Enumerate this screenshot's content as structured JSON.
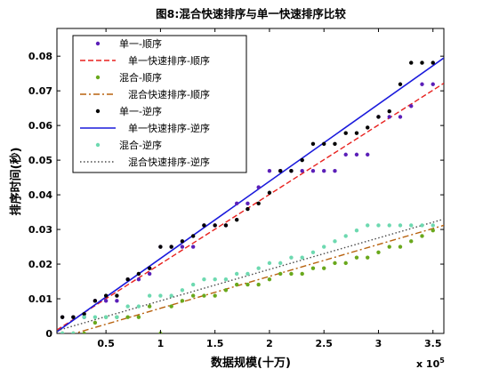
{
  "chart_data": {
    "type": "scatter",
    "title": "图8:混合快速排序与单一快速排序比较",
    "xlabel": "数据规模(十万)",
    "ylabel": "排序时间(秒)",
    "x_multiplier": "x 10",
    "x_exponent": "5",
    "xlim": [
      5000,
      360000
    ],
    "ylim": [
      0,
      0.088
    ],
    "x_ticks": [
      50000,
      100000,
      150000,
      200000,
      250000,
      300000,
      350000
    ],
    "x_tick_labels": [
      "0.5",
      "1",
      "1.5",
      "2",
      "2.5",
      "3",
      "3.5"
    ],
    "y_ticks": [
      0,
      0.01,
      0.02,
      0.03,
      0.04,
      0.05,
      0.06,
      0.07,
      0.08
    ],
    "y_tick_labels": [
      "0",
      "0.01",
      "0.02",
      "0.03",
      "0.04",
      "0.05",
      "0.06",
      "0.07",
      "0.08"
    ],
    "grid": false,
    "legend_position": "top-left",
    "series": [
      {
        "name": "单一-顺序",
        "kind": "points",
        "color": "#5b1fb8",
        "x": [
          10000,
          20000,
          30000,
          40000,
          50000,
          60000,
          70000,
          80000,
          90000,
          100000,
          110000,
          120000,
          130000,
          140000,
          150000,
          160000,
          170000,
          180000,
          190000,
          200000,
          210000,
          220000,
          230000,
          240000,
          250000,
          260000,
          270000,
          280000,
          290000,
          300000,
          310000,
          320000,
          330000,
          340000,
          350000
        ],
        "y": [
          0.0047,
          0.0047,
          0.0047,
          0.0094,
          0.0094,
          0.0094,
          0.0156,
          0.0156,
          0.0172,
          0.025,
          0.025,
          0.025,
          0.025,
          0.0312,
          0.0312,
          0.0312,
          0.0375,
          0.0375,
          0.0422,
          0.0469,
          0.0469,
          0.0469,
          0.0469,
          0.0469,
          0.0469,
          0.0469,
          0.0516,
          0.0516,
          0.0516,
          0.0625,
          0.0625,
          0.0625,
          0.0656,
          0.0719,
          0.0719
        ]
      },
      {
        "name": "单一快速排序-顺序",
        "kind": "dashed-line",
        "color": "#e8211e",
        "x": [
          5000,
          360000
        ],
        "y": [
          0.001,
          0.0722
        ]
      },
      {
        "name": "混合-顺序",
        "kind": "points",
        "color": "#69a81c",
        "x": [
          10000,
          20000,
          30000,
          40000,
          50000,
          60000,
          70000,
          80000,
          90000,
          100000,
          110000,
          120000,
          130000,
          140000,
          150000,
          160000,
          170000,
          180000,
          190000,
          200000,
          210000,
          220000,
          230000,
          240000,
          250000,
          260000,
          270000,
          280000,
          290000,
          300000,
          310000,
          320000,
          330000,
          340000,
          350000
        ],
        "y": [
          0.0,
          0.0,
          0.0,
          0.0031,
          0.0047,
          0.0047,
          0.0047,
          0.0047,
          0.0078,
          0.0,
          0.0078,
          0.0094,
          0.0109,
          0.0109,
          0.0109,
          0.0125,
          0.0141,
          0.0141,
          0.0141,
          0.0156,
          0.0172,
          0.0172,
          0.0172,
          0.0188,
          0.0188,
          0.0203,
          0.0203,
          0.0219,
          0.0219,
          0.0234,
          0.025,
          0.025,
          0.0266,
          0.0281,
          0.0297
        ]
      },
      {
        "name": "混合快速排序-顺序",
        "kind": "dashdot-line",
        "color": "#b8620e",
        "x": [
          5000,
          360000
        ],
        "y": [
          -0.0015,
          0.0312
        ]
      },
      {
        "name": "单一-逆序",
        "kind": "points",
        "color": "#000000",
        "x": [
          10000,
          20000,
          30000,
          40000,
          50000,
          60000,
          70000,
          80000,
          90000,
          100000,
          110000,
          120000,
          130000,
          140000,
          150000,
          160000,
          170000,
          180000,
          190000,
          200000,
          210000,
          220000,
          230000,
          240000,
          250000,
          260000,
          270000,
          280000,
          290000,
          300000,
          310000,
          320000,
          330000,
          340000,
          350000
        ],
        "y": [
          0.0047,
          0.0047,
          0.0056,
          0.0094,
          0.0109,
          0.0109,
          0.0156,
          0.0172,
          0.0188,
          0.025,
          0.025,
          0.0266,
          0.0281,
          0.0312,
          0.0312,
          0.0312,
          0.0328,
          0.0359,
          0.0375,
          0.0406,
          0.0469,
          0.0469,
          0.05,
          0.0547,
          0.0547,
          0.0547,
          0.0578,
          0.0578,
          0.0594,
          0.0625,
          0.0641,
          0.0719,
          0.0781,
          0.0781,
          0.0781
        ]
      },
      {
        "name": "单一快速排序-逆序",
        "kind": "solid-line",
        "color": "#1a1adc",
        "x": [
          5000,
          360000
        ],
        "y": [
          0.0005,
          0.0795
        ]
      },
      {
        "name": "混合-逆序",
        "kind": "points",
        "color": "#6dd9b0",
        "x": [
          10000,
          20000,
          30000,
          40000,
          50000,
          60000,
          70000,
          80000,
          90000,
          100000,
          110000,
          120000,
          130000,
          140000,
          150000,
          160000,
          170000,
          180000,
          190000,
          200000,
          210000,
          220000,
          230000,
          240000,
          250000,
          260000,
          270000,
          280000,
          290000,
          300000,
          310000,
          320000,
          330000,
          340000,
          350000
        ],
        "y": [
          0.0,
          0.0,
          0.0047,
          0.0047,
          0.0047,
          0.0047,
          0.0078,
          0.0078,
          0.0109,
          0.0109,
          0.0109,
          0.0125,
          0.0141,
          0.0156,
          0.0156,
          0.0156,
          0.0172,
          0.0172,
          0.0188,
          0.0203,
          0.0203,
          0.0219,
          0.0219,
          0.0234,
          0.025,
          0.0266,
          0.0281,
          0.0297,
          0.0312,
          0.0312,
          0.0312,
          0.0312,
          0.0312,
          0.0312,
          0.0312
        ]
      },
      {
        "name": "混合快速排序-逆序",
        "kind": "dotted-line",
        "color": "#4a4a4a",
        "x": [
          5000,
          360000
        ],
        "y": [
          0.0008,
          0.033
        ]
      }
    ]
  }
}
